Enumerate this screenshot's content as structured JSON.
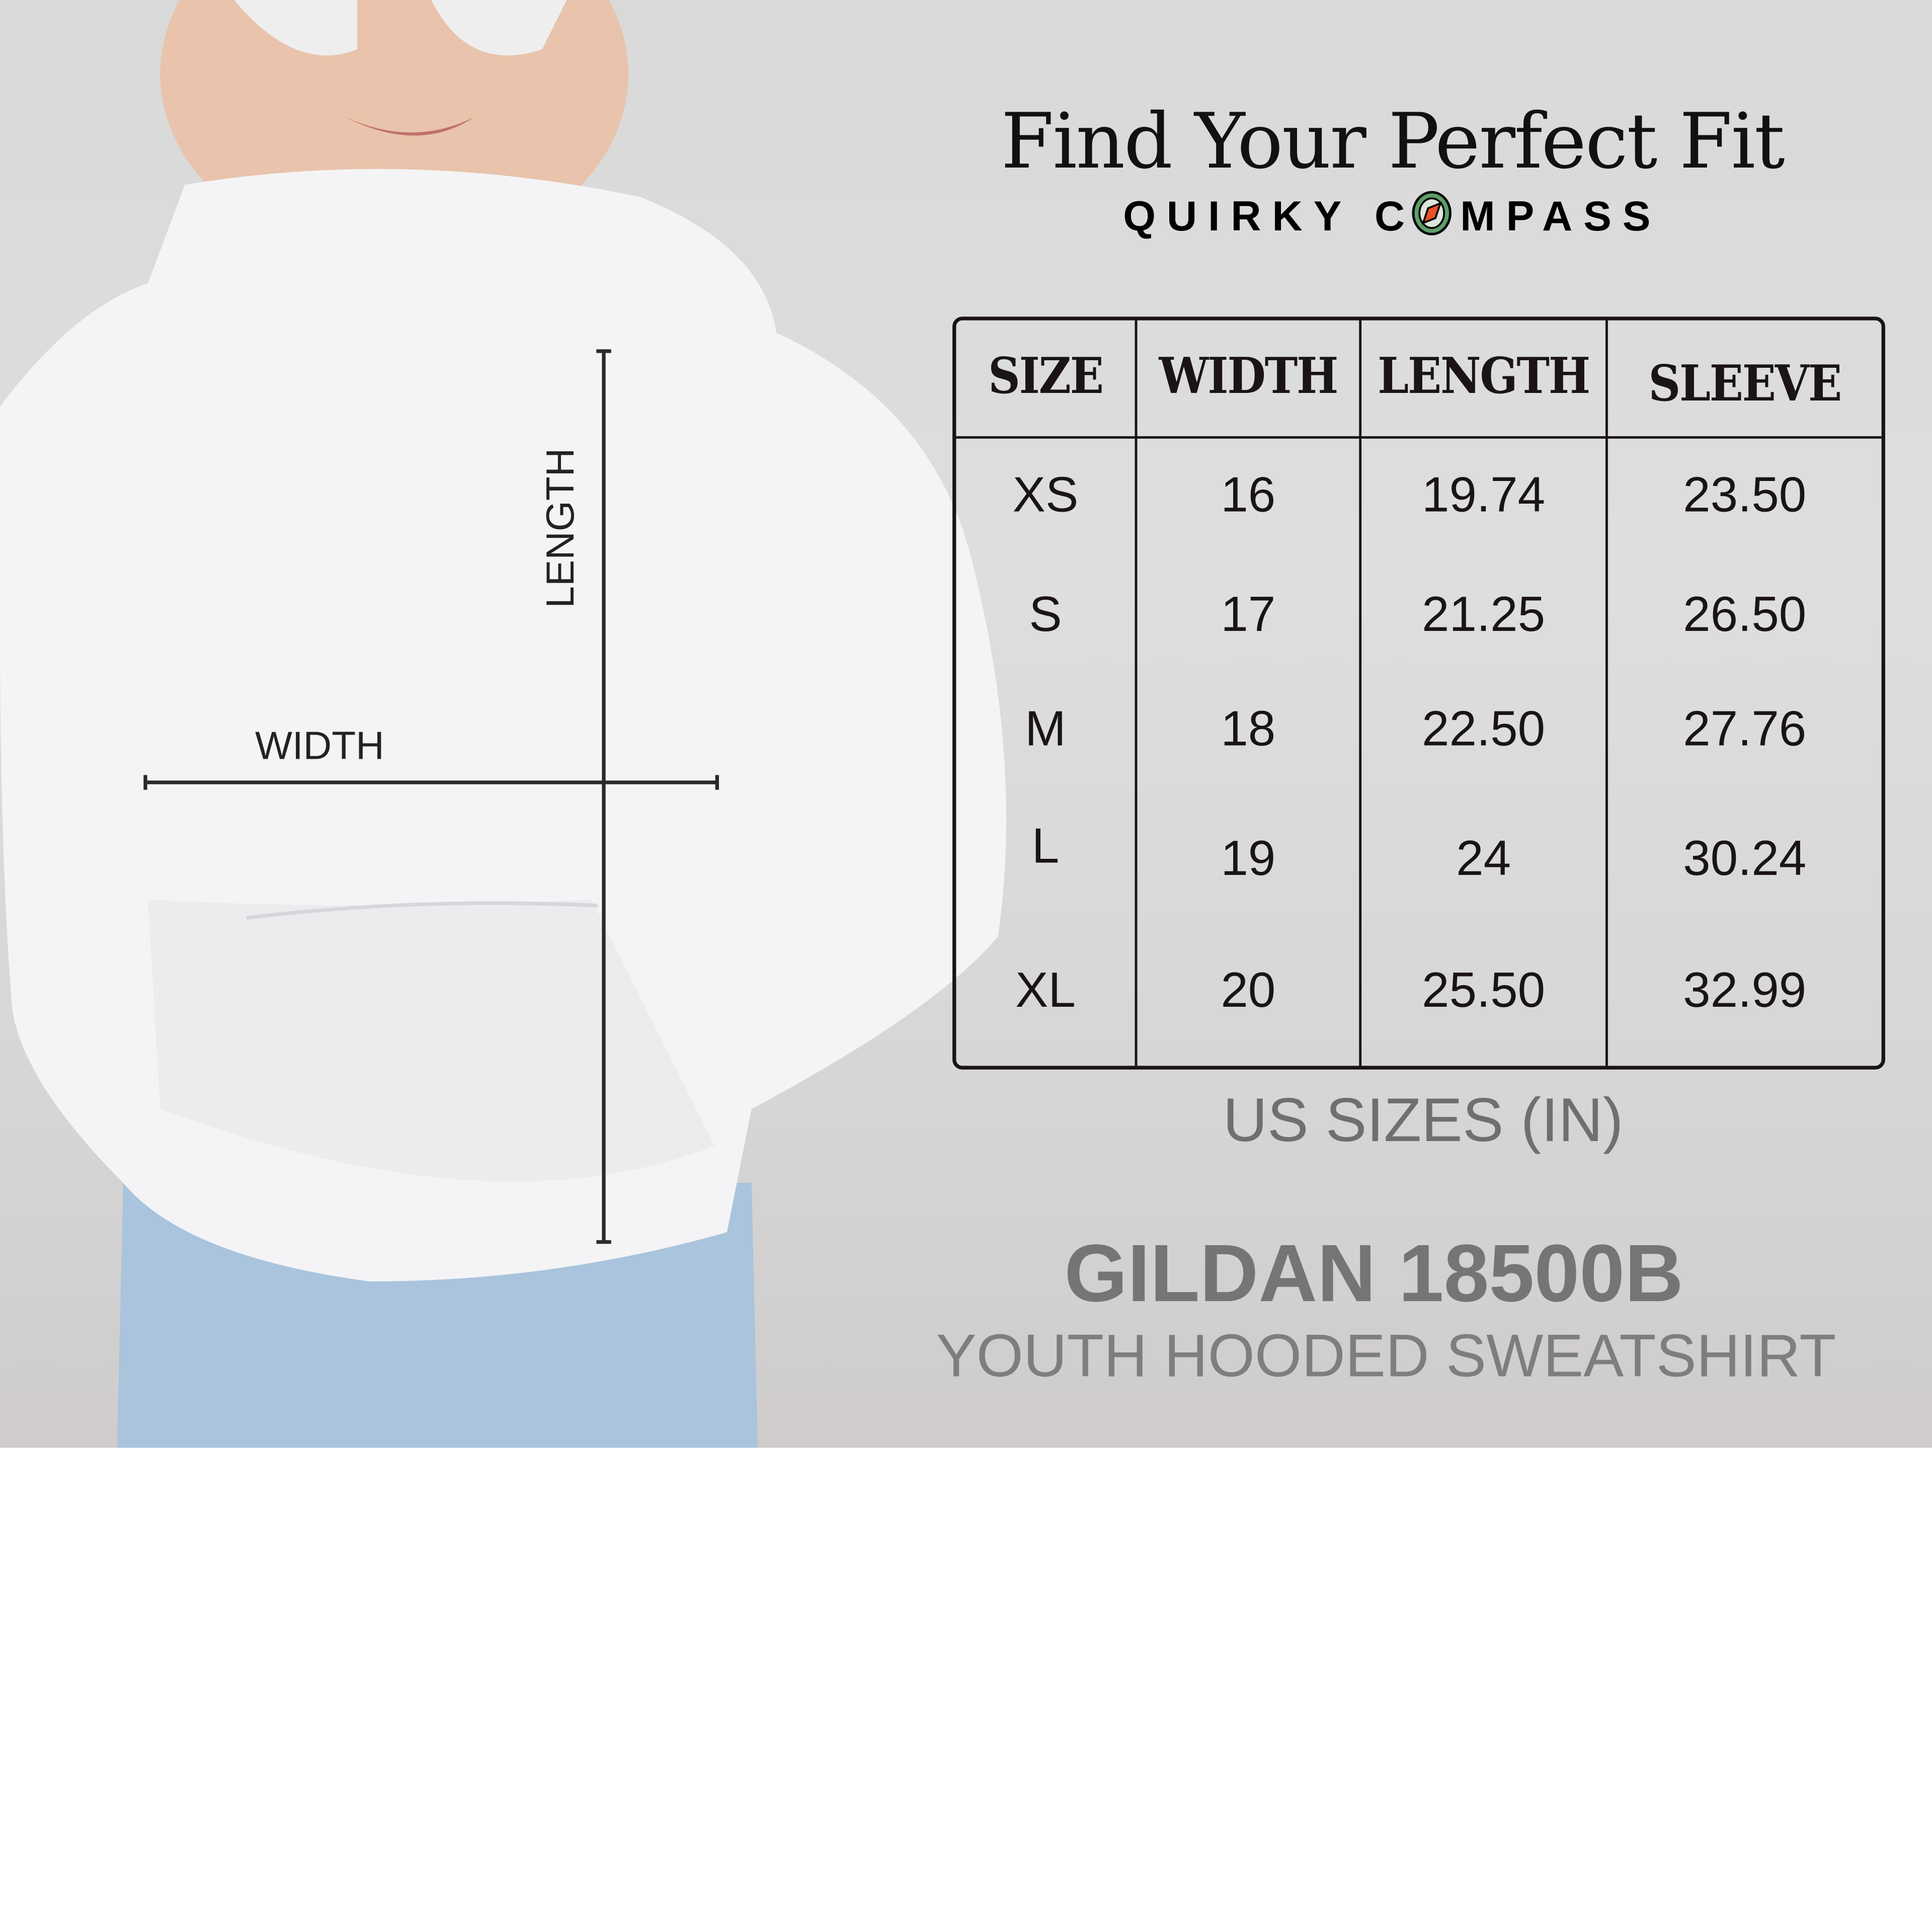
{
  "header": {
    "title": "Find Your Perfect Fit",
    "brand_part1": "QUIRKY C",
    "brand_part2": "MPASS",
    "brand_logo": "compass-icon"
  },
  "diagram": {
    "length_label": "LENGTH",
    "width_label": "WIDTH"
  },
  "size_table": {
    "columns": [
      "SIZE",
      "WIDTH",
      "LENGTH",
      "SLEEVE"
    ],
    "rows": [
      [
        "XS",
        "16",
        "19.74",
        "23.50"
      ],
      [
        "S",
        "17",
        "21.25",
        "26.50"
      ],
      [
        "M",
        "18",
        "22.50",
        "27.76"
      ],
      [
        "L",
        "19",
        "24",
        "30.24"
      ],
      [
        "XL",
        "20",
        "25.50",
        "32.99"
      ]
    ]
  },
  "footer": {
    "units": "US SIZES (IN)",
    "model": "GILDAN 18500B",
    "description": "YOUTH HOODED SWEATSHIRT"
  },
  "colors": {
    "text": "#1a1414",
    "compass_ring": "#5f9e6a",
    "compass_needle": "#e8502a"
  }
}
